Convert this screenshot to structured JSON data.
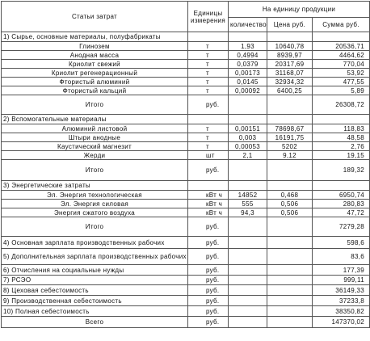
{
  "table": {
    "header": {
      "item": "Статьи затрат",
      "unit": "Единицы измерения",
      "per_unit": "На единицу продукции",
      "quantity": "количество",
      "price": "Цена руб.",
      "sum": "Сумма руб."
    },
    "groups": [
      {
        "title": "1) Сырье, основные материалы, полуфабрикаты",
        "rows": [
          [
            "Глинозем",
            "т",
            "1,93",
            "10640,78",
            "20536,71"
          ],
          [
            "Анодная масса",
            "т",
            "0,4994",
            "8939,97",
            "4464,62"
          ],
          [
            "Криолит свежий",
            "т",
            "0,0379",
            "20317,69",
            "770,04"
          ],
          [
            "Криолит регенерационный",
            "т",
            "0,00173",
            "31168,07",
            "53,92"
          ],
          [
            "Фтористый алюминий",
            "т",
            "0,0145",
            "32934,32",
            "477,55"
          ],
          [
            "Фтористый кальций",
            "т",
            "0,00092",
            "6400,25",
            "5,89"
          ]
        ],
        "total": [
          "Итого",
          "руб.",
          "26308,72"
        ]
      },
      {
        "title": "2) Вспомогательные материалы",
        "rows": [
          [
            "Алюминий листовой",
            "т",
            "0,00151",
            "78698,67",
            "118,83"
          ],
          [
            "Штыри анодные",
            "т",
            "0,003",
            "16191,75",
            "48,58"
          ],
          [
            "Каустический магнезит",
            "т",
            "0,00053",
            "5202",
            "2,76"
          ],
          [
            "Жерди",
            "шт",
            "2,1",
            "9,12",
            "19,15"
          ]
        ],
        "total": [
          "Итого",
          "руб.",
          "189,32"
        ]
      },
      {
        "title": "3) Энергетические затраты",
        "rows": [
          [
            "Эл. Энергия технологическая",
            "кВт ч",
            "14852",
            "0,468",
            "6950,74"
          ],
          [
            "Эл. Энергия силовая",
            "кВт ч",
            "555",
            "0,506",
            "280,83"
          ],
          [
            "Энергия сжатого воздуха",
            "кВт ч",
            "94,3",
            "0,506",
            "47,72"
          ]
        ],
        "total": [
          "Итого",
          "руб.",
          "7279,28"
        ]
      }
    ],
    "summary": [
      [
        "4) Основная зарплата производственных рабочих",
        "руб.",
        "598,6"
      ],
      [
        "5) Дополнительная зарплата производственных рабочих",
        "руб.",
        "83,6"
      ],
      [
        "6) Отчисления на социальные нужды",
        "руб.",
        "177,39"
      ],
      [
        "7) РСЭО",
        "руб.",
        "999,11"
      ],
      [
        "8) Цеховая себестоимость",
        "руб.",
        "36149,33"
      ],
      [
        "9) Производственная себестоимость",
        "руб.",
        "37233,8"
      ],
      [
        "10) Полная себестоимость",
        "руб.",
        "38350,82"
      ],
      [
        "Всего",
        "руб.",
        "147370,02"
      ]
    ]
  }
}
